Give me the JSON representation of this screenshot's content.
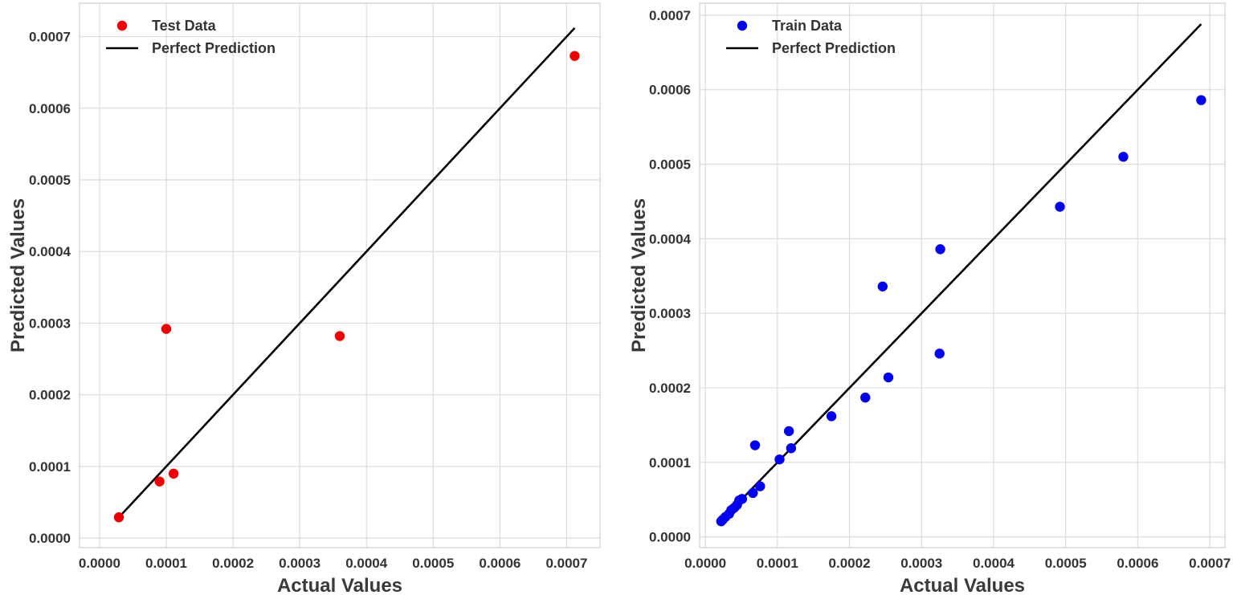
{
  "chart_data": [
    {
      "type": "scatter",
      "xlabel": "Actual Values",
      "ylabel": "Predicted Values",
      "xlim": [
        -3e-05,
        0.00075
      ],
      "ylim": [
        -1.33e-05,
        0.0007466
      ],
      "xticks": [
        0.0,
        0.0001,
        0.0002,
        0.0003,
        0.0004,
        0.0005,
        0.0006,
        0.0007
      ],
      "xtick_labels": [
        "0.0000",
        "0.0001",
        "0.0002",
        "0.0003",
        "0.0004",
        "0.0005",
        "0.0006",
        "0.0007"
      ],
      "yticks": [
        0.0,
        0.0001,
        0.0002,
        0.0003,
        0.0004,
        0.0005,
        0.0006,
        0.0007
      ],
      "ytick_labels": [
        "0.0000",
        "0.0001",
        "0.0002",
        "0.0003",
        "0.0004",
        "0.0005",
        "0.0006",
        "0.0007"
      ],
      "grid": true,
      "legend_position": "top-left",
      "series": [
        {
          "name": "Test Data",
          "kind": "scatter",
          "color": "#ee0000",
          "points": [
            [
              2.9e-05,
              2.9e-05
            ],
            [
              9e-05,
              7.9e-05
            ],
            [
              0.0001,
              0.000292
            ],
            [
              0.000111,
              9e-05
            ],
            [
              0.00036,
              0.000282
            ],
            [
              0.000712,
              0.000673
            ]
          ]
        },
        {
          "name": "Perfect Prediction",
          "kind": "line",
          "color": "#000000",
          "points": [
            [
              2.9e-05,
              2.9e-05
            ],
            [
              0.000712,
              0.000712
            ]
          ]
        }
      ]
    },
    {
      "type": "scatter",
      "xlabel": "Actual Values",
      "ylabel": "Predicted Values",
      "xlim": [
        -7.9e-06,
        0.000721
      ],
      "ylim": [
        -1.43e-05,
        0.000716
      ],
      "xticks": [
        0.0,
        0.0001,
        0.0002,
        0.0003,
        0.0004,
        0.0005,
        0.0006,
        0.0007
      ],
      "xtick_labels": [
        "0.0000",
        "0.0001",
        "0.0002",
        "0.0003",
        "0.0004",
        "0.0005",
        "0.0006",
        "0.0007"
      ],
      "yticks": [
        0.0,
        0.0001,
        0.0002,
        0.0003,
        0.0004,
        0.0005,
        0.0006,
        0.0007
      ],
      "ytick_labels": [
        "0.0000",
        "0.0001",
        "0.0002",
        "0.0003",
        "0.0004",
        "0.0005",
        "0.0006",
        "0.0007"
      ],
      "grid": true,
      "legend_position": "top-left",
      "series": [
        {
          "name": "Train Data",
          "kind": "scatter",
          "color": "#0000ee",
          "points": [
            [
              2.2e-05,
              2.1e-05
            ],
            [
              2.4e-05,
              2.3e-05
            ],
            [
              2.8e-05,
              2.7e-05
            ],
            [
              3.3e-05,
              3.1e-05
            ],
            [
              3.6e-05,
              3.6e-05
            ],
            [
              4e-05,
              3.9e-05
            ],
            [
              4.4e-05,
              4.3e-05
            ],
            [
              4.7e-05,
              4.9e-05
            ],
            [
              5.1e-05,
              5.1e-05
            ],
            [
              6.6e-05,
              5.9e-05
            ],
            [
              6.9e-05,
              0.000123
            ],
            [
              7.6e-05,
              6.8e-05
            ],
            [
              0.000103,
              0.000104
            ],
            [
              0.000116,
              0.000142
            ],
            [
              0.000119,
              0.000119
            ],
            [
              0.000175,
              0.000162
            ],
            [
              0.000222,
              0.000187
            ],
            [
              0.000246,
              0.000336
            ],
            [
              0.000254,
              0.000214
            ],
            [
              0.000325,
              0.000246
            ],
            [
              0.000326,
              0.000386
            ],
            [
              0.000492,
              0.000443
            ],
            [
              0.00058,
              0.00051
            ],
            [
              0.000688,
              0.000586
            ]
          ]
        },
        {
          "name": "Perfect Prediction",
          "kind": "line",
          "color": "#000000",
          "points": [
            [
              2.1e-05,
              2.1e-05
            ],
            [
              0.000688,
              0.000688
            ]
          ]
        }
      ]
    }
  ]
}
